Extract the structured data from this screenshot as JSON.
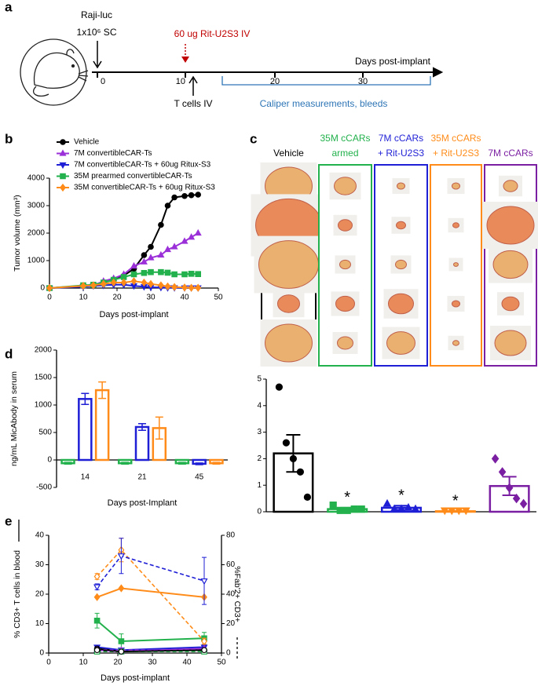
{
  "panel_labels": [
    "a",
    "b",
    "c",
    "d",
    "e"
  ],
  "timeline": {
    "cell_line": "Raji-luc",
    "dose": "1x10⁶ SC",
    "treatment": "60 ug Rit-U2S3 IV",
    "axis_label": "Days post-implant",
    "ticks": [
      0,
      10,
      20,
      30
    ],
    "t_cells": "T cells IV",
    "measurements": "Caliper measurements, bleeds"
  },
  "photo_panel": {
    "groups": [
      {
        "label": [
          "Vehicle"
        ],
        "color": "#000000"
      },
      {
        "label": [
          "35M cCARs",
          "armed"
        ],
        "color": "#22b14c"
      },
      {
        "label": [
          "7M cCARs",
          "+ Rit-U2S3"
        ],
        "color": "#1f1fd6"
      },
      {
        "label": [
          "35M cCARs",
          "+ Rit-U2S3"
        ],
        "color": "#ff8c1a"
      },
      {
        "label": [
          "7M cCARs"
        ],
        "color": "#7b1fa2"
      }
    ]
  },
  "chart_data": [
    {
      "type": "line",
      "ylabel": "Tumor volume (mm³)",
      "xlabel": "Days post-implant",
      "xlim": [
        0,
        50
      ],
      "xticks": [
        0,
        10,
        20,
        30,
        40,
        50
      ],
      "ylim": [
        0,
        4000
      ],
      "yticks": [
        0,
        1000,
        2000,
        3000,
        4000
      ],
      "legend": "upper left",
      "x": [
        0,
        10,
        13,
        16,
        19,
        22,
        25,
        28,
        30,
        33,
        35,
        37,
        40,
        42,
        44
      ],
      "series": [
        {
          "name": "Vehicle",
          "color": "#000000",
          "marker": "circle",
          "values": [
            0,
            80,
            120,
            200,
            300,
            450,
            700,
            1200,
            1500,
            2300,
            3000,
            3300,
            3350,
            3380,
            3400
          ]
        },
        {
          "name": "7M convertibleCAR-Ts",
          "color": "#9b30d9",
          "marker": "triangle-up",
          "values": [
            0,
            70,
            100,
            250,
            350,
            500,
            800,
            950,
            1100,
            1200,
            1400,
            1500,
            1700,
            1850,
            2000
          ]
        },
        {
          "name": "7M convertibleCAR-Ts + 60ug Ritux-S3",
          "color": "#1f1fd6",
          "marker": "triangle-down",
          "values": [
            0,
            50,
            80,
            100,
            120,
            120,
            80,
            50,
            30,
            20,
            10,
            10,
            5,
            5,
            5
          ]
        },
        {
          "name": "35M prearmed convertibleCAR-Ts",
          "color": "#22b14c",
          "marker": "square",
          "values": [
            0,
            100,
            120,
            200,
            300,
            400,
            500,
            550,
            580,
            580,
            560,
            500,
            500,
            520,
            510
          ]
        },
        {
          "name": "35M convertibleCAR-Ts + 60ug Ritux-S3",
          "color": "#ff8c1a",
          "marker": "diamond",
          "values": [
            0,
            80,
            100,
            150,
            200,
            200,
            250,
            200,
            150,
            100,
            60,
            40,
            20,
            10,
            10
          ]
        }
      ]
    },
    {
      "type": "bar",
      "categories": [
        null,
        null,
        null,
        null,
        null
      ],
      "values": [
        2.2,
        0.1,
        0.15,
        0.02,
        0.97
      ],
      "errors": [
        0.7,
        0.05,
        0.08,
        0.01,
        0.35
      ],
      "points": [
        [
          4.7,
          2.6,
          2.0,
          1.5,
          0.55
        ],
        [
          0.25,
          0.05,
          0.05,
          0.1,
          0.1
        ],
        [
          0.3,
          0.1,
          0.1,
          0.15,
          0.1
        ],
        [
          0.05,
          0.05,
          0.05,
          0.05
        ],
        [
          2.0,
          1.5,
          0.9,
          0.5,
          0.3
        ]
      ],
      "colors": [
        "#000000",
        "#22b14c",
        "#1f1fd6",
        "#ff8c1a",
        "#7b1fa2"
      ],
      "markers": [
        "circle",
        "square",
        "triangle-up",
        "triangle-down",
        "diamond"
      ],
      "annotations": [
        null,
        "*",
        "*",
        "*",
        null
      ],
      "ylim": [
        0,
        5
      ],
      "yticks": [
        0,
        1,
        2,
        3,
        4,
        5
      ]
    },
    {
      "type": "grouped_bar",
      "ylabel": "ng/mL MicAbody in serum",
      "xlabel": "Days post-Implant",
      "categories": [
        "14",
        "21",
        "45"
      ],
      "ylim": [
        -500,
        2000
      ],
      "yticks": [
        -500,
        0,
        500,
        1000,
        1500,
        2000
      ],
      "series": [
        {
          "color": "#22b14c",
          "values": [
            -60,
            -60,
            -60
          ],
          "errors": [
            15,
            15,
            15
          ]
        },
        {
          "color": "#1f1fd6",
          "values": [
            1110,
            600,
            -70
          ],
          "errors": [
            100,
            60,
            15
          ]
        },
        {
          "color": "#ff8c1a",
          "values": [
            1270,
            580,
            -60
          ],
          "errors": [
            150,
            200,
            15
          ]
        }
      ]
    },
    {
      "type": "line",
      "ylabel": "% CD3+ T cells in blood",
      "y2label": "%Fab'2+ CD3+",
      "xlabel": "Days post-implant",
      "xlim": [
        0,
        50
      ],
      "xticks": [
        0,
        10,
        20,
        30,
        40,
        50
      ],
      "ylim": [
        0,
        40
      ],
      "yticks": [
        0,
        10,
        20,
        30,
        40
      ],
      "y2lim": [
        0,
        80
      ],
      "y2ticks": [
        0,
        20,
        40,
        60,
        80
      ],
      "x": [
        14,
        21,
        45
      ],
      "series": [
        {
          "color": "#ff8c1a",
          "marker": "diamond",
          "values": [
            19,
            22,
            19
          ]
        },
        {
          "color": "#22b14c",
          "marker": "square",
          "values": [
            11,
            4,
            5
          ],
          "errors": [
            2.5,
            2.5,
            2
          ]
        },
        {
          "color": "#1f1fd6",
          "marker": "triangle-down",
          "values": [
            2,
            1,
            2
          ]
        },
        {
          "color": "#9b30d9",
          "marker": "triangle-up",
          "values": [
            1,
            0.5,
            1.5
          ]
        },
        {
          "color": "#000000",
          "marker": "circle",
          "values": [
            1.5,
            0.5,
            1
          ]
        },
        {
          "color": "#ff8c1a",
          "marker": "diamond-open",
          "dash": true,
          "axis": "y2",
          "values": [
            52,
            70,
            8
          ],
          "errors": [
            2,
            8,
            2
          ]
        },
        {
          "color": "#1f1fd6",
          "marker": "triangle-down-open",
          "dash": true,
          "axis": "y2",
          "values": [
            45,
            66,
            49
          ],
          "errors": [
            2,
            12,
            16
          ]
        },
        {
          "color": "#9b30d9",
          "marker": "triangle-up-open",
          "dash": true,
          "axis": "y2",
          "values": [
            2,
            2,
            2
          ]
        },
        {
          "color": "#22b14c",
          "marker": "square-open",
          "dash": true,
          "axis": "y2",
          "values": [
            1,
            1,
            1
          ]
        },
        {
          "color": "#000000",
          "marker": "circle-open",
          "dash": true,
          "axis": "y2",
          "values": [
            2,
            1,
            2
          ]
        }
      ]
    }
  ]
}
